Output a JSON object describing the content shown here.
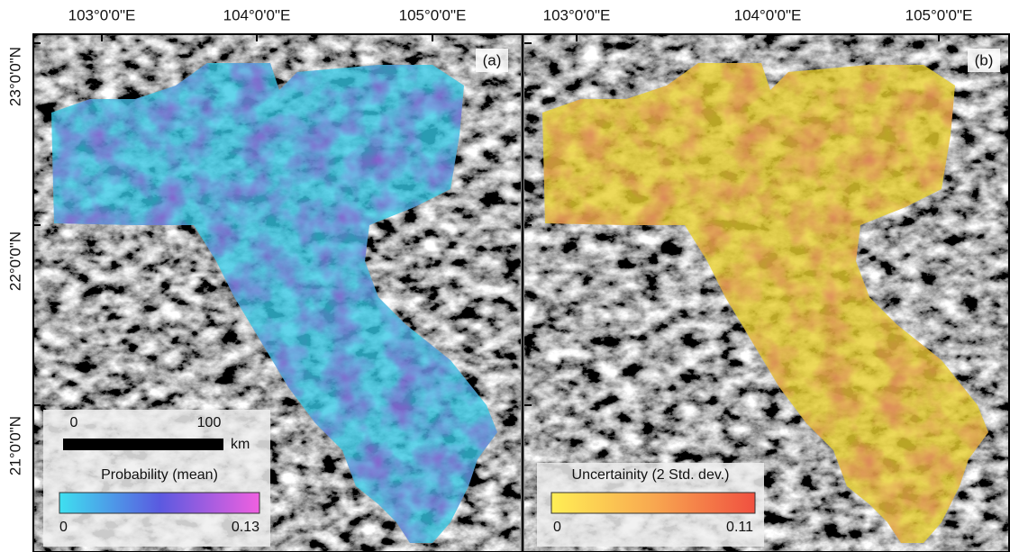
{
  "longitudes": [
    "103°0'0\"E",
    "104°0'0\"E",
    "105°0'0\"E"
  ],
  "latitudes": [
    "23°0'0\"N",
    "22°0'0\"N",
    "21°0'0\"N"
  ],
  "panels": [
    {
      "label": "(a)",
      "scale_bar": {
        "start": "0",
        "end": "100",
        "unit": "km"
      },
      "legend": {
        "title": "Probability (mean)",
        "min": "0",
        "max": "0.13"
      }
    },
    {
      "label": "(b)",
      "legend": {
        "title": "Uncertainity (2 Std. dev.)",
        "min": "0",
        "max": "0.11"
      }
    }
  ]
}
